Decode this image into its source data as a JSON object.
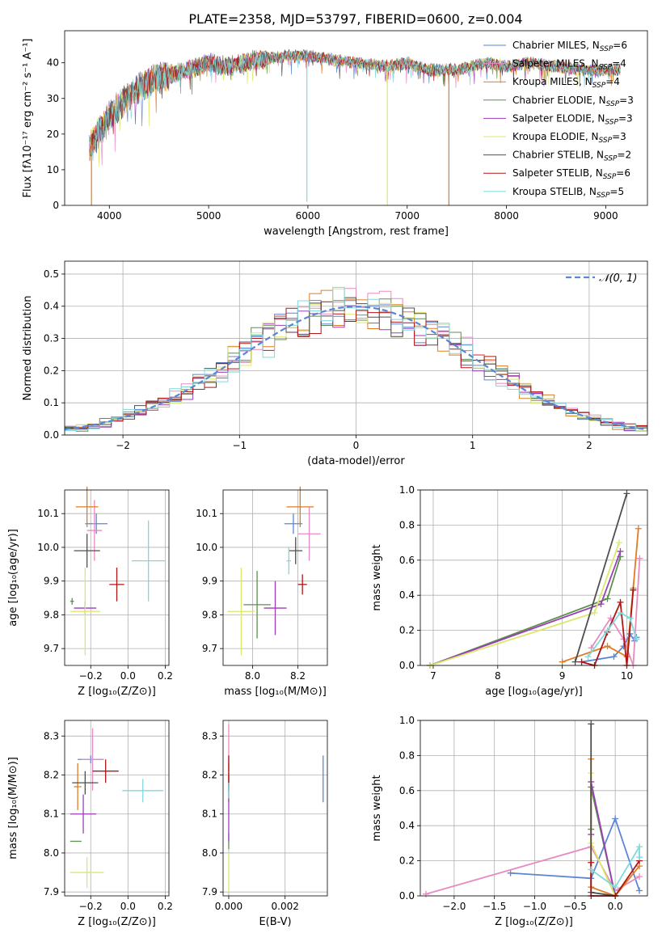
{
  "colors": {
    "Chabrier MILES": "#5b86d6",
    "Salpeter MILES": "#e88ac2",
    "Kroupa MILES": "#e07b22",
    "Chabrier ELODIE": "#5c8f4c",
    "Salpeter ELODIE": "#9b3fb7",
    "Kroupa ELODIE": "#dbe86a",
    "Chabrier STELIB": "#4f4f4f",
    "Salpeter STELIB": "#b01515",
    "Kroupa STELIB": "#7fd8dc",
    "gauss": "#5b86d6"
  },
  "chart_data": [
    {
      "type": "line",
      "title": "PLATE=2358, MJD=53797, FIBERID=0600, z=0.004",
      "xlabel": "wavelength [Angstrom, rest frame]",
      "ylabel": "Flux [fλ10⁻¹⁷ erg cm⁻² s⁻¹ A⁻¹]",
      "xlim": [
        3550,
        9420
      ],
      "ylim": [
        0,
        49
      ],
      "xticks": [
        "4000",
        "5000",
        "6000",
        "7000",
        "8000",
        "9000"
      ],
      "yticks": [
        "0",
        "10",
        "20",
        "30",
        "40"
      ],
      "legend_position": "top-right",
      "legend": [
        {
          "label": "Chabrier MILES, N",
          "sub": "SSP",
          "suffix": "=6",
          "series": "Chabrier MILES"
        },
        {
          "label": "Salpeter MILES, N",
          "sub": "SSP",
          "suffix": "=4",
          "series": "Salpeter MILES"
        },
        {
          "label": "Kroupa MILES, N",
          "sub": "SSP",
          "suffix": "=4",
          "series": "Kroupa MILES"
        },
        {
          "label": "Chabrier ELODIE, N",
          "sub": "SSP",
          "suffix": "=3",
          "series": "Chabrier ELODIE"
        },
        {
          "label": "Salpeter ELODIE, N",
          "sub": "SSP",
          "suffix": "=3",
          "series": "Salpeter ELODIE"
        },
        {
          "label": "Kroupa ELODIE, N",
          "sub": "SSP",
          "suffix": "=3",
          "series": "Kroupa ELODIE"
        },
        {
          "label": "Chabrier STELIB, N",
          "sub": "SSP",
          "suffix": "=2",
          "series": "Chabrier STELIB"
        },
        {
          "label": "Salpeter STELIB, N",
          "sub": "SSP",
          "suffix": "=6",
          "series": "Salpeter STELIB"
        },
        {
          "label": "Kroupa STELIB, N",
          "sub": "SSP",
          "suffix": "=5",
          "series": "Kroupa STELIB"
        }
      ],
      "continuum": {
        "x": [
          3800,
          3900,
          4000,
          4100,
          4300,
          4500,
          4800,
          5000,
          5200,
          5500,
          5800,
          6000,
          6200,
          6500,
          6800,
          7000,
          7200,
          7500,
          7800,
          8000,
          8200,
          8500,
          8800,
          9000,
          9150
        ],
        "y": [
          16,
          21,
          25,
          28,
          33,
          36,
          38,
          40,
          39,
          41,
          42,
          42,
          41,
          40,
          39,
          40,
          38,
          38,
          40,
          39,
          40,
          39,
          38,
          38,
          38
        ]
      },
      "drops": [
        {
          "x": 3820,
          "y": 0,
          "series": "Kroupa MILES"
        },
        {
          "x": 5990,
          "y": 1,
          "series": "Kroupa STELIB"
        },
        {
          "x": 6800,
          "y": 0,
          "series": "Kroupa ELODIE"
        },
        {
          "x": 7420,
          "y": 0,
          "series": "Kroupa MILES"
        }
      ]
    },
    {
      "type": "step-histogram",
      "xlabel": "(data-model)/error",
      "ylabel": "Normed distribution",
      "xlim": [
        -2.5,
        2.5
      ],
      "ylim": [
        0,
        0.54
      ],
      "xticks": [
        "−2",
        "−1",
        "0",
        "1",
        "2"
      ],
      "yticks": [
        "0.0",
        "0.1",
        "0.2",
        "0.3",
        "0.4",
        "0.5"
      ],
      "legend_position": "top-right",
      "gauss_label": "𝒩(0, 1)",
      "bin_width": 0.1
    },
    {
      "type": "errorbar",
      "xlabel": "Z [log₁₀(Z/Z⊙)]",
      "ylabel": "age  [log₁₀(age/yr)]",
      "xlim": [
        -0.34,
        0.22
      ],
      "ylim": [
        9.65,
        10.17
      ],
      "xticks": [
        "−0.2",
        "0.0",
        "0.2"
      ],
      "yticks": [
        "9.7",
        "9.8",
        "9.9",
        "10.0",
        "10.1"
      ],
      "points": [
        {
          "series": "Chabrier MILES",
          "x": -0.17,
          "xerr": 0.06,
          "y": 10.07,
          "yerr": 0.03
        },
        {
          "series": "Salpeter MILES",
          "x": -0.18,
          "xerr": 0.04,
          "y": 10.05,
          "yerr": 0.09
        },
        {
          "series": "Kroupa MILES",
          "x": -0.22,
          "xerr": 0.06,
          "y": 10.12,
          "yerr": 0.06
        },
        {
          "series": "Chabrier ELODIE",
          "x": -0.3,
          "xerr": 0.01,
          "y": 9.84,
          "yerr": 0.01
        },
        {
          "series": "Salpeter ELODIE",
          "x": -0.23,
          "xerr": 0.06,
          "y": 9.82,
          "yerr": 0.02
        },
        {
          "series": "Kroupa ELODIE",
          "x": -0.23,
          "xerr": 0.08,
          "y": 9.81,
          "yerr": 0.13
        },
        {
          "series": "Chabrier STELIB",
          "x": -0.22,
          "xerr": 0.07,
          "y": 9.99,
          "yerr": 0.05
        },
        {
          "series": "Salpeter STELIB",
          "x": -0.06,
          "xerr": 0.04,
          "y": 9.89,
          "yerr": 0.05
        },
        {
          "series": "Kroupa STELIB",
          "x": 0.11,
          "xerr": 0.09,
          "y": 9.96,
          "yerr": 0.12
        }
      ]
    },
    {
      "type": "errorbar",
      "xlabel": "mass [log₁₀(M/M⊙)]",
      "ylabel": "",
      "xlim": [
        7.87,
        8.33
      ],
      "ylim": [
        9.65,
        10.17
      ],
      "xticks": [
        "8.0",
        "8.2"
      ],
      "yticks": [
        "9.7",
        "9.8",
        "9.9",
        "10.0",
        "10.1"
      ],
      "points": [
        {
          "series": "Chabrier MILES",
          "x": 8.18,
          "xerr": 0.04,
          "y": 10.07,
          "yerr": 0.03
        },
        {
          "series": "Salpeter MILES",
          "x": 8.25,
          "xerr": 0.05,
          "y": 10.04,
          "yerr": 0.08
        },
        {
          "series": "Kroupa MILES",
          "x": 8.21,
          "xerr": 0.06,
          "y": 10.12,
          "yerr": 0.06
        },
        {
          "series": "Chabrier ELODIE",
          "x": 8.02,
          "xerr": 0.06,
          "y": 9.83,
          "yerr": 0.1
        },
        {
          "series": "Salpeter ELODIE",
          "x": 8.1,
          "xerr": 0.05,
          "y": 9.82,
          "yerr": 0.08
        },
        {
          "series": "Kroupa ELODIE",
          "x": 7.95,
          "xerr": 0.06,
          "y": 9.81,
          "yerr": 0.13
        },
        {
          "series": "Chabrier STELIB",
          "x": 8.19,
          "xerr": 0.03,
          "y": 9.99,
          "yerr": 0.04
        },
        {
          "series": "Salpeter STELIB",
          "x": 8.22,
          "xerr": 0.02,
          "y": 9.89,
          "yerr": 0.03
        },
        {
          "series": "Kroupa STELIB",
          "x": 8.16,
          "xerr": 0.01,
          "y": 9.96,
          "yerr": 0.04
        }
      ]
    },
    {
      "type": "errorbar",
      "xlabel": "Z [log₁₀(Z/Z⊙)]",
      "ylabel": "mass [log₁₀(M/M⊙)]",
      "xlim": [
        -0.34,
        0.22
      ],
      "ylim": [
        7.89,
        8.34
      ],
      "xticks": [
        "−0.2",
        "0.0",
        "0.2"
      ],
      "yticks": [
        "7.9",
        "8.0",
        "8.1",
        "8.2",
        "8.3"
      ],
      "points": [
        {
          "series": "Chabrier MILES",
          "x": -0.2,
          "xerr": 0.07,
          "y": 8.24,
          "yerr": 0.01
        },
        {
          "series": "Salpeter MILES",
          "x": -0.19,
          "xerr": 0.06,
          "y": 8.24,
          "yerr": 0.08
        },
        {
          "series": "Kroupa MILES",
          "x": -0.27,
          "xerr": 0.02,
          "y": 8.17,
          "yerr": 0.06
        },
        {
          "series": "Chabrier ELODIE",
          "x": -0.28,
          "xerr": 0.03,
          "y": 8.03,
          "yerr": 0.0
        },
        {
          "series": "Salpeter ELODIE",
          "x": -0.24,
          "xerr": 0.07,
          "y": 8.1,
          "yerr": 0.05
        },
        {
          "series": "Kroupa ELODIE",
          "x": -0.22,
          "xerr": 0.09,
          "y": 7.95,
          "yerr": 0.04
        },
        {
          "series": "Chabrier STELIB",
          "x": -0.23,
          "xerr": 0.07,
          "y": 8.18,
          "yerr": 0.03
        },
        {
          "series": "Salpeter STELIB",
          "x": -0.12,
          "xerr": 0.07,
          "y": 8.21,
          "yerr": 0.03
        },
        {
          "series": "Kroupa STELIB",
          "x": 0.08,
          "xerr": 0.11,
          "y": 8.16,
          "yerr": 0.03
        }
      ]
    },
    {
      "type": "errorbar",
      "xlabel": "E(B-V)",
      "ylabel": "",
      "xlim": [
        -0.0002,
        0.0035
      ],
      "ylim": [
        7.89,
        8.34
      ],
      "xticks": [
        "0.000",
        "0.002"
      ],
      "yticks": [
        "7.9",
        "8.0",
        "8.1",
        "8.2",
        "8.3"
      ],
      "points": [
        {
          "series": "Chabrier MILES",
          "x": 0.00335,
          "xerr": 0.0,
          "y": 8.19,
          "yerr": 0.06
        },
        {
          "series": "Salpeter MILES",
          "x": 0.0,
          "xerr": 0.0,
          "y": 8.27,
          "yerr": 0.06
        },
        {
          "series": "Kroupa MILES",
          "x": 0.0,
          "xerr": 0.0,
          "y": 8.18,
          "yerr": 0.05
        },
        {
          "series": "Chabrier ELODIE",
          "x": 0.0,
          "xerr": 0.0,
          "y": 8.03,
          "yerr": 0.02
        },
        {
          "series": "Salpeter ELODIE",
          "x": 0.0,
          "xerr": 0.0,
          "y": 8.1,
          "yerr": 0.07
        },
        {
          "series": "Kroupa ELODIE",
          "x": 0.0,
          "xerr": 0.0,
          "y": 7.95,
          "yerr": 0.05
        },
        {
          "series": "Chabrier STELIB",
          "x": 0.0,
          "xerr": 0.0,
          "y": 8.18,
          "yerr": 0.02
        },
        {
          "series": "Salpeter STELIB",
          "x": 0.0,
          "xerr": 0.0,
          "y": 8.21,
          "yerr": 0.04
        },
        {
          "series": "Kroupa STELIB",
          "x": 0.0,
          "xerr": 0.0,
          "y": 8.16,
          "yerr": 0.02
        }
      ]
    },
    {
      "type": "line",
      "xlabel": "age  [log₁₀(age/yr)]",
      "ylabel": "mass weight",
      "xlim": [
        6.8,
        10.32
      ],
      "ylim": [
        0,
        1.0
      ],
      "xticks": [
        "7",
        "8",
        "9",
        "10"
      ],
      "yticks": [
        "0.0",
        "0.2",
        "0.4",
        "0.6",
        "0.8",
        "1.0"
      ],
      "series": [
        {
          "series": "Chabrier MILES",
          "x": [
            9.3,
            9.8,
            9.95,
            10.05,
            10.12,
            10.15
          ],
          "y": [
            0.02,
            0.05,
            0.11,
            0.18,
            0.14,
            0.16
          ]
        },
        {
          "series": "Salpeter MILES",
          "x": [
            9.45,
            9.75,
            9.95,
            10.1,
            10.2
          ],
          "y": [
            0.1,
            0.27,
            0.15,
            0.0,
            0.61
          ]
        },
        {
          "series": "Kroupa MILES",
          "x": [
            9.0,
            9.7,
            10.0,
            10.1,
            10.18
          ],
          "y": [
            0.02,
            0.11,
            0.05,
            0.44,
            0.78
          ]
        },
        {
          "series": "Chabrier ELODIE",
          "x": [
            6.95,
            9.7,
            9.9
          ],
          "y": [
            0.0,
            0.38,
            0.62
          ]
        },
        {
          "series": "Salpeter ELODIE",
          "x": [
            6.95,
            9.6,
            9.9
          ],
          "y": [
            0.0,
            0.35,
            0.65
          ]
        },
        {
          "series": "Kroupa ELODIE",
          "x": [
            6.95,
            9.5,
            9.88
          ],
          "y": [
            0.0,
            0.3,
            0.7
          ]
        },
        {
          "series": "Chabrier STELIB",
          "x": [
            9.2,
            10.0
          ],
          "y": [
            0.02,
            0.98
          ]
        },
        {
          "series": "Salpeter STELIB",
          "x": [
            9.3,
            9.5,
            9.7,
            9.9,
            10.0,
            10.1
          ],
          "y": [
            0.02,
            0.0,
            0.19,
            0.36,
            0.0,
            0.43
          ]
        },
        {
          "series": "Kroupa STELIB",
          "x": [
            9.4,
            9.7,
            9.9,
            10.05,
            10.15
          ],
          "y": [
            0.05,
            0.2,
            0.3,
            0.27,
            0.15
          ]
        }
      ]
    },
    {
      "type": "line",
      "xlabel": "Z [log₁₀(Z/Z⊙)]",
      "ylabel": "mass weight",
      "xlim": [
        -2.42,
        0.4
      ],
      "ylim": [
        0,
        1.0
      ],
      "xticks": [
        "−2.0",
        "−1.5",
        "−1.0",
        "−0.5",
        "0.0"
      ],
      "yticks": [
        "0.0",
        "0.2",
        "0.4",
        "0.6",
        "0.8",
        "1.0"
      ],
      "series": [
        {
          "series": "Chabrier MILES",
          "x": [
            -1.3,
            -0.3,
            0.0,
            0.3
          ],
          "y": [
            0.13,
            0.1,
            0.44,
            0.03
          ]
        },
        {
          "series": "Salpeter MILES",
          "x": [
            -2.35,
            -0.3,
            0.0,
            0.3
          ],
          "y": [
            0.01,
            0.28,
            0.03,
            0.11
          ]
        },
        {
          "series": "Kroupa MILES",
          "x": [
            -0.3,
            -0.3,
            0.0,
            0.3
          ],
          "y": [
            0.78,
            0.05,
            0.0,
            0.17
          ]
        },
        {
          "series": "Chabrier ELODIE",
          "x": [
            -0.3,
            -0.3,
            0.0
          ],
          "y": [
            0.38,
            0.62,
            0.0
          ]
        },
        {
          "series": "Salpeter ELODIE",
          "x": [
            -0.3,
            -0.3,
            0.0
          ],
          "y": [
            0.35,
            0.65,
            0.0
          ]
        },
        {
          "series": "Kroupa ELODIE",
          "x": [
            -0.3,
            -0.3,
            0.0
          ],
          "y": [
            0.7,
            0.3,
            0.0
          ]
        },
        {
          "series": "Chabrier STELIB",
          "x": [
            -0.3,
            -0.3,
            0.0
          ],
          "y": [
            0.98,
            0.02,
            0.0
          ]
        },
        {
          "series": "Salpeter STELIB",
          "x": [
            -0.3,
            -0.3,
            0.0,
            0.3
          ],
          "y": [
            0.19,
            0.0,
            0.0,
            0.2
          ]
        },
        {
          "series": "Kroupa STELIB",
          "x": [
            -0.3,
            0.0,
            0.3,
            0.3
          ],
          "y": [
            0.15,
            0.05,
            0.28,
            0.22
          ]
        }
      ]
    }
  ]
}
